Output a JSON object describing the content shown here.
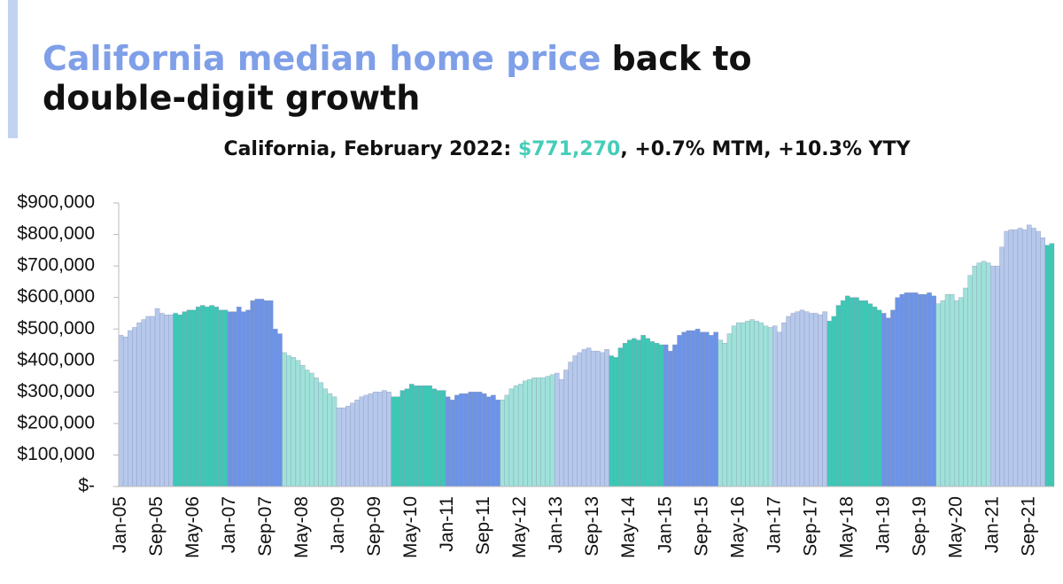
{
  "chart_data": {
    "type": "bar",
    "title": [
      "California median home price",
      "back to",
      "double-digit growth"
    ],
    "subtitle": [
      "California, February 2022: ",
      "$771,270",
      ", +0.7% MTM, +10.3% YTY"
    ],
    "categories": [
      "Jan-05",
      null,
      null,
      null,
      null,
      null,
      null,
      null,
      "Sep-05",
      null,
      null,
      null,
      null,
      null,
      null,
      null,
      "May-06",
      null,
      null,
      null,
      null,
      null,
      null,
      null,
      "Jan-07",
      null,
      null,
      null,
      null,
      null,
      null,
      null,
      "Sep-07",
      null,
      null,
      null,
      null,
      null,
      null,
      null,
      "May-08",
      null,
      null,
      null,
      null,
      null,
      null,
      null,
      "Jan-09",
      null,
      null,
      null,
      null,
      null,
      null,
      null,
      "Sep-09",
      null,
      null,
      null,
      null,
      null,
      null,
      null,
      "May-10",
      null,
      null,
      null,
      null,
      null,
      null,
      null,
      "Jan-11",
      null,
      null,
      null,
      null,
      null,
      null,
      null,
      "Sep-11",
      null,
      null,
      null,
      null,
      null,
      null,
      null,
      "May-12",
      null,
      null,
      null,
      null,
      null,
      null,
      null,
      "Jan-13",
      null,
      null,
      null,
      null,
      null,
      null,
      null,
      "Sep-13",
      null,
      null,
      null,
      null,
      null,
      null,
      null,
      "May-14",
      null,
      null,
      null,
      null,
      null,
      null,
      null,
      "Jan-15",
      null,
      null,
      null,
      null,
      null,
      null,
      null,
      "Sep-15",
      null,
      null,
      null,
      null,
      null,
      null,
      null,
      "May-16",
      null,
      null,
      null,
      null,
      null,
      null,
      null,
      "Jan-17",
      null,
      null,
      null,
      null,
      null,
      null,
      null,
      "Sep-17",
      null,
      null,
      null,
      null,
      null,
      null,
      null,
      "May-18",
      null,
      null,
      null,
      null,
      null,
      null,
      null,
      "Jan-19",
      null,
      null,
      null,
      null,
      null,
      null,
      null,
      "Sep-19",
      null,
      null,
      null,
      null,
      null,
      null,
      null,
      "May-20",
      null,
      null,
      null,
      null,
      null,
      null,
      null,
      "Jan-21",
      null,
      null,
      null,
      null,
      null,
      null,
      null,
      "Sep-21",
      null,
      null,
      null,
      null,
      null
    ],
    "values": [
      480000,
      475000,
      495000,
      505000,
      520000,
      530000,
      540000,
      540000,
      565000,
      550000,
      545000,
      545000,
      550000,
      545000,
      555000,
      560000,
      560000,
      570000,
      575000,
      570000,
      575000,
      570000,
      560000,
      560000,
      555000,
      555000,
      570000,
      555000,
      560000,
      590000,
      595000,
      595000,
      590000,
      590000,
      500000,
      485000,
      425000,
      415000,
      410000,
      400000,
      385000,
      370000,
      360000,
      345000,
      330000,
      310000,
      295000,
      285000,
      250000,
      250000,
      255000,
      265000,
      275000,
      285000,
      290000,
      295000,
      300000,
      300000,
      305000,
      300000,
      285000,
      285000,
      305000,
      310000,
      325000,
      320000,
      320000,
      320000,
      320000,
      310000,
      305000,
      305000,
      285000,
      275000,
      290000,
      295000,
      295000,
      300000,
      300000,
      300000,
      295000,
      285000,
      290000,
      275000,
      275000,
      290000,
      310000,
      320000,
      325000,
      335000,
      340000,
      345000,
      345000,
      345000,
      350000,
      355000,
      360000,
      340000,
      370000,
      395000,
      415000,
      425000,
      435000,
      440000,
      430000,
      430000,
      425000,
      435000,
      415000,
      410000,
      440000,
      455000,
      465000,
      470000,
      465000,
      480000,
      470000,
      460000,
      455000,
      450000,
      450000,
      430000,
      450000,
      480000,
      490000,
      495000,
      495000,
      500000,
      490000,
      490000,
      480000,
      490000,
      465000,
      455000,
      485000,
      510000,
      520000,
      520000,
      525000,
      530000,
      525000,
      520000,
      510000,
      505000,
      510000,
      490000,
      520000,
      540000,
      550000,
      555000,
      560000,
      555000,
      550000,
      550000,
      545000,
      555000,
      525000,
      540000,
      575000,
      590000,
      605000,
      600000,
      600000,
      590000,
      590000,
      580000,
      570000,
      560000,
      550000,
      535000,
      560000,
      600000,
      610000,
      615000,
      615000,
      615000,
      610000,
      610000,
      615000,
      605000,
      580000,
      590000,
      610000,
      610000,
      590000,
      600000,
      630000,
      670000,
      700000,
      710000,
      715000,
      710000,
      700000,
      700000,
      760000,
      810000,
      815000,
      815000,
      820000,
      815000,
      830000,
      820000,
      810000,
      790000,
      765960,
      771270
    ],
    "colors": [
      "#b6c8ec",
      "#3ec7b5",
      "#6d93e6",
      "#9fe2da"
    ],
    "ylim": [
      0,
      900000
    ],
    "yticks": [
      {
        "value": 0,
        "label": "$-"
      },
      {
        "value": 100000,
        "label": "$100,000"
      },
      {
        "value": 200000,
        "label": "$200,000"
      },
      {
        "value": 300000,
        "label": "$300,000"
      },
      {
        "value": 400000,
        "label": "$400,000"
      },
      {
        "value": 500000,
        "label": "$500,000"
      },
      {
        "value": 600000,
        "label": "$600,000"
      },
      {
        "value": 700000,
        "label": "$700,000"
      },
      {
        "value": 800000,
        "label": "$800,000"
      },
      {
        "value": 900000,
        "label": "$900,000"
      }
    ],
    "grid": false
  }
}
